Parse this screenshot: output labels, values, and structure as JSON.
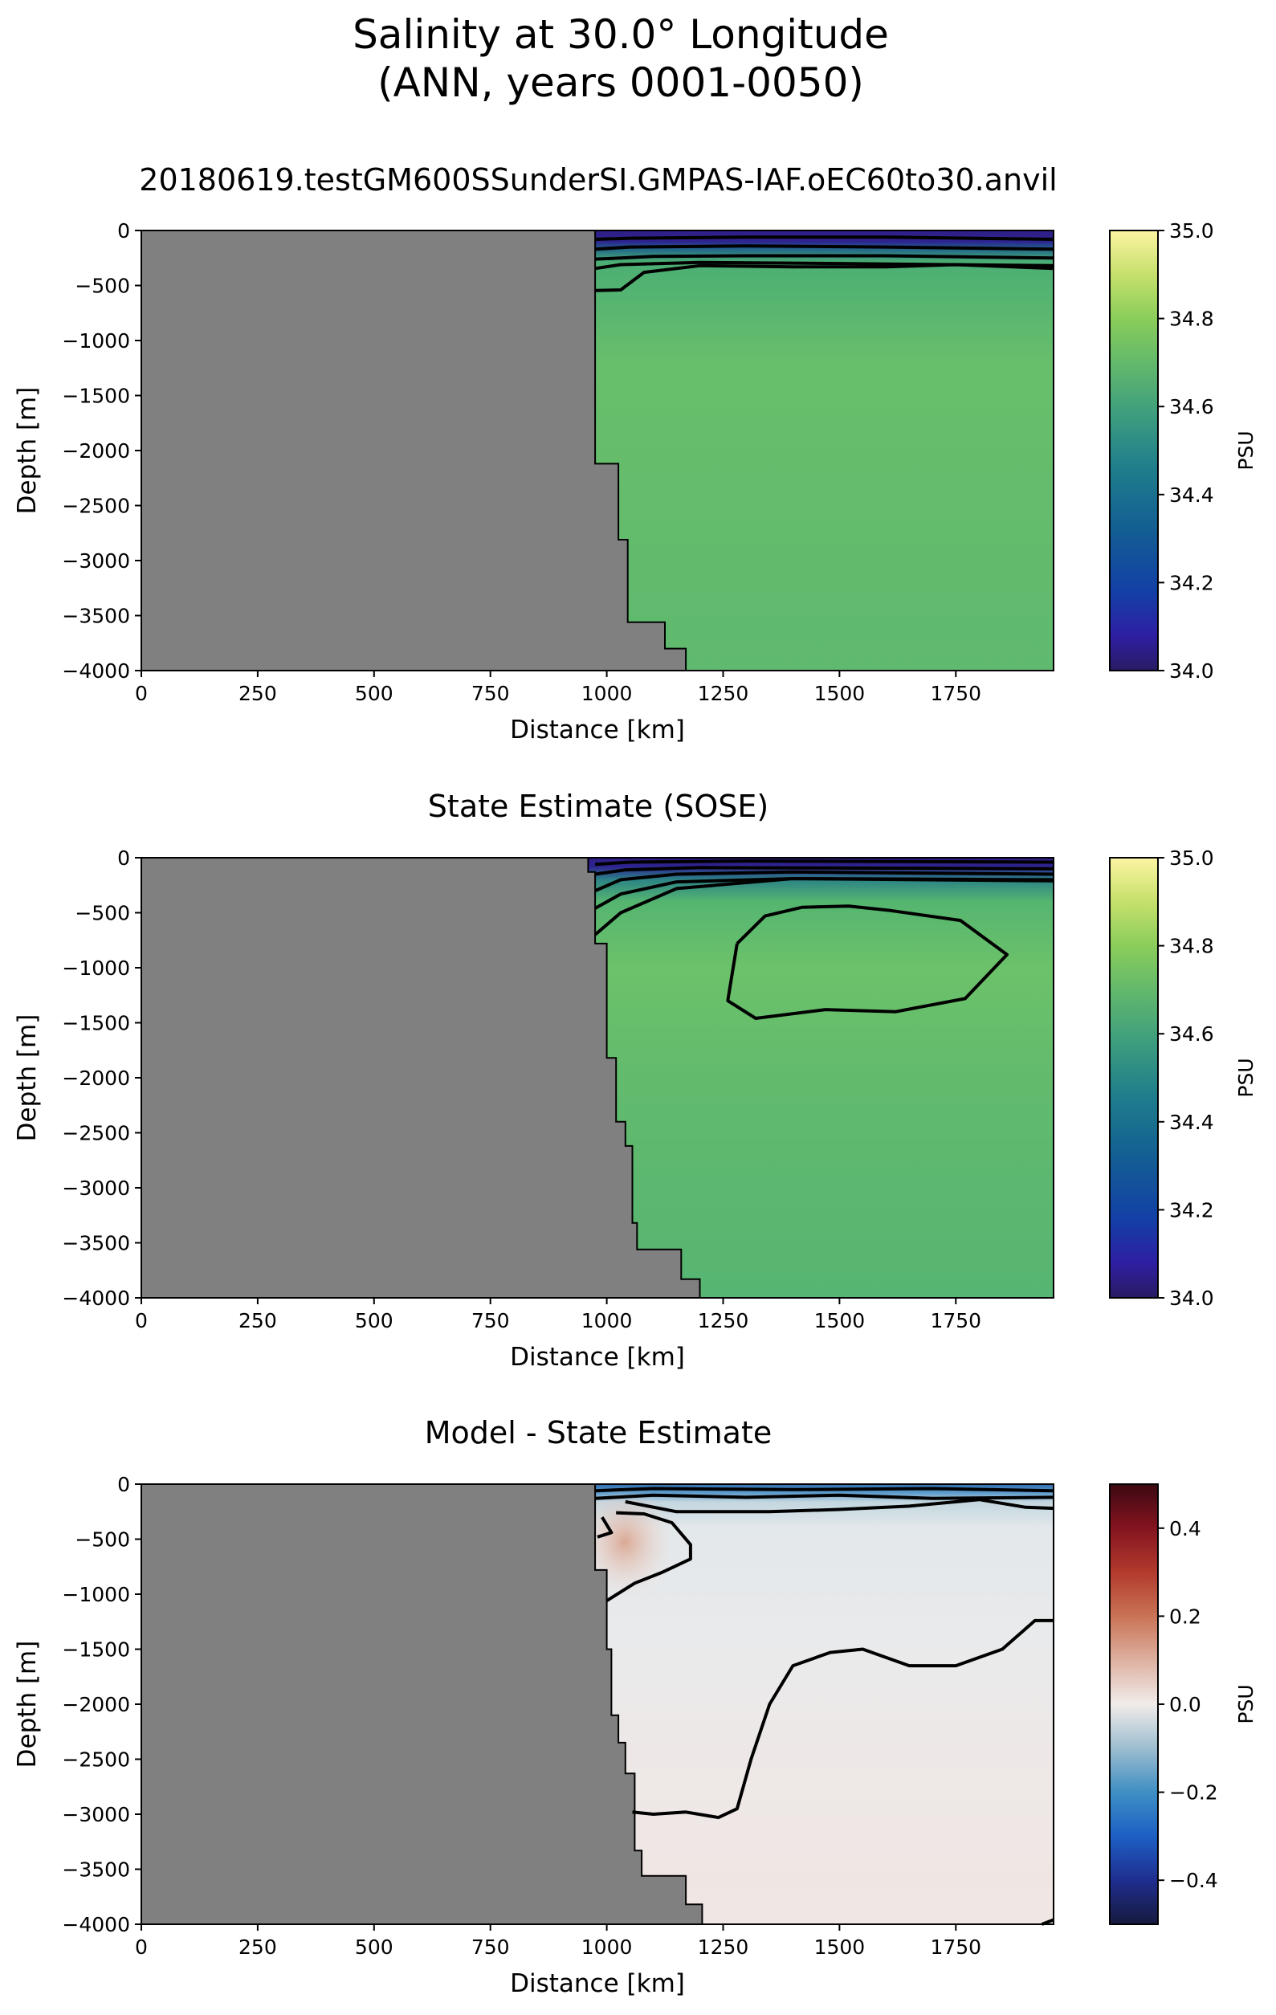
{
  "figure": {
    "title_line1": "Salinity at 30.0° Longitude",
    "title_line2": "(ANN, years 0001-0050)"
  },
  "colors": {
    "land": "#808080",
    "contour": "#000000"
  },
  "chart_data": [
    {
      "type": "heatmap",
      "title": "20180619.testGM600SSunderSI.GMPAS-IAF.oEC60to30.anvil",
      "xlabel": "Distance [km]",
      "ylabel": "Depth [m]",
      "xlim": [
        0,
        1960
      ],
      "ylim": [
        -4000,
        0
      ],
      "xticks": [
        0,
        250,
        500,
        750,
        1000,
        1250,
        1500,
        1750
      ],
      "yticks": [
        0,
        -500,
        -1000,
        -1500,
        -2000,
        -2500,
        -3000,
        -3500,
        -4000
      ],
      "colorbar": {
        "label": "PSU",
        "min": 34.0,
        "max": 35.0,
        "ticks": [
          34.0,
          34.2,
          34.4,
          34.6,
          34.8,
          35.0
        ],
        "colormap": "haline"
      },
      "field": {
        "surface_value": 34.1,
        "interior_value": 34.7,
        "deep_value": 34.68
      },
      "land_boundary": [
        [
          0,
          0
        ],
        [
          975,
          0
        ],
        [
          975,
          -2120
        ],
        [
          1025,
          -2120
        ],
        [
          1025,
          -2810
        ],
        [
          1045,
          -2810
        ],
        [
          1045,
          -3560
        ],
        [
          1125,
          -3560
        ],
        [
          1125,
          -3800
        ],
        [
          1170,
          -3800
        ],
        [
          1170,
          -4000
        ],
        [
          0,
          -4000
        ]
      ],
      "contours": [
        [
          [
            975,
            -80
          ],
          [
            1050,
            -70
          ],
          [
            1300,
            -60
          ],
          [
            1600,
            -60
          ],
          [
            1960,
            -80
          ]
        ],
        [
          [
            975,
            -170
          ],
          [
            1050,
            -150
          ],
          [
            1300,
            -140
          ],
          [
            1600,
            -150
          ],
          [
            1960,
            -170
          ]
        ],
        [
          [
            975,
            -260
          ],
          [
            1030,
            -250
          ],
          [
            1100,
            -235
          ],
          [
            1300,
            -230
          ],
          [
            1600,
            -230
          ],
          [
            1960,
            -250
          ]
        ],
        [
          [
            975,
            -345
          ],
          [
            1030,
            -310
          ],
          [
            1200,
            -290
          ],
          [
            1500,
            -300
          ],
          [
            1960,
            -320
          ]
        ],
        [
          [
            975,
            -545
          ],
          [
            1030,
            -540
          ],
          [
            1080,
            -380
          ],
          [
            1200,
            -320
          ],
          [
            1400,
            -330
          ],
          [
            1600,
            -330
          ],
          [
            1750,
            -310
          ],
          [
            1960,
            -345
          ]
        ]
      ]
    },
    {
      "type": "heatmap",
      "title": "State Estimate (SOSE)",
      "xlabel": "Distance [km]",
      "ylabel": "Depth [m]",
      "xlim": [
        0,
        1960
      ],
      "ylim": [
        -4000,
        0
      ],
      "xticks": [
        0,
        250,
        500,
        750,
        1000,
        1250,
        1500,
        1750
      ],
      "yticks": [
        0,
        -500,
        -1000,
        -1500,
        -2000,
        -2500,
        -3000,
        -3500,
        -4000
      ],
      "colorbar": {
        "label": "PSU",
        "min": 34.0,
        "max": 35.0,
        "ticks": [
          34.0,
          34.2,
          34.4,
          34.6,
          34.8,
          35.0
        ],
        "colormap": "haline"
      },
      "field": {
        "surface_value": 34.1,
        "interior_value": 34.72,
        "deep_value": 34.66
      },
      "land_boundary": [
        [
          0,
          0
        ],
        [
          960,
          0
        ],
        [
          960,
          -130
        ],
        [
          975,
          -130
        ],
        [
          975,
          -780
        ],
        [
          1000,
          -780
        ],
        [
          1000,
          -1820
        ],
        [
          1020,
          -1820
        ],
        [
          1020,
          -2400
        ],
        [
          1040,
          -2400
        ],
        [
          1040,
          -2620
        ],
        [
          1055,
          -2620
        ],
        [
          1055,
          -3320
        ],
        [
          1065,
          -3320
        ],
        [
          1065,
          -3560
        ],
        [
          1160,
          -3560
        ],
        [
          1160,
          -3830
        ],
        [
          1200,
          -3830
        ],
        [
          1200,
          -4000
        ],
        [
          0,
          -4000
        ]
      ],
      "contours": [
        [
          [
            975,
            -60
          ],
          [
            1050,
            -40
          ],
          [
            1300,
            -30
          ],
          [
            1960,
            -40
          ]
        ],
        [
          [
            975,
            -150
          ],
          [
            1040,
            -110
          ],
          [
            1200,
            -90
          ],
          [
            1960,
            -100
          ]
        ],
        [
          [
            975,
            -300
          ],
          [
            1030,
            -200
          ],
          [
            1150,
            -150
          ],
          [
            1400,
            -130
          ],
          [
            1960,
            -150
          ]
        ],
        [
          [
            975,
            -460
          ],
          [
            1030,
            -330
          ],
          [
            1150,
            -220
          ],
          [
            1400,
            -190
          ],
          [
            1960,
            -200
          ]
        ],
        [
          [
            975,
            -700
          ],
          [
            1030,
            -500
          ],
          [
            1150,
            -280
          ],
          [
            1400,
            -190
          ],
          [
            1960,
            -210
          ]
        ],
        [
          [
            1280,
            -780
          ],
          [
            1340,
            -530
          ],
          [
            1420,
            -450
          ],
          [
            1520,
            -440
          ],
          [
            1610,
            -480
          ],
          [
            1760,
            -570
          ],
          [
            1860,
            -880
          ],
          [
            1770,
            -1280
          ],
          [
            1620,
            -1400
          ],
          [
            1470,
            -1380
          ],
          [
            1320,
            -1460
          ],
          [
            1260,
            -1300
          ],
          [
            1280,
            -780
          ]
        ]
      ]
    },
    {
      "type": "heatmap",
      "title": "Model - State Estimate",
      "xlabel": "Distance [km]",
      "ylabel": "Depth [m]",
      "xlim": [
        0,
        1960
      ],
      "ylim": [
        -4000,
        0
      ],
      "xticks": [
        0,
        250,
        500,
        750,
        1000,
        1250,
        1500,
        1750
      ],
      "yticks": [
        0,
        -500,
        -1000,
        -1500,
        -2000,
        -2500,
        -3000,
        -3500,
        -4000
      ],
      "colorbar": {
        "label": "PSU",
        "min": -0.5,
        "max": 0.5,
        "ticks": [
          -0.4,
          -0.2,
          0.0,
          0.2,
          0.4
        ],
        "colormap": "balance"
      },
      "field": {
        "surface_value": -0.3,
        "interior_value": -0.02,
        "deep_value": 0.02
      },
      "land_boundary": [
        [
          0,
          0
        ],
        [
          975,
          0
        ],
        [
          975,
          -780
        ],
        [
          1000,
          -780
        ],
        [
          1000,
          -1500
        ],
        [
          1010,
          -1500
        ],
        [
          1010,
          -2100
        ],
        [
          1025,
          -2100
        ],
        [
          1025,
          -2350
        ],
        [
          1040,
          -2350
        ],
        [
          1040,
          -2630
        ],
        [
          1060,
          -2630
        ],
        [
          1060,
          -3330
        ],
        [
          1075,
          -3330
        ],
        [
          1075,
          -3560
        ],
        [
          1170,
          -3560
        ],
        [
          1170,
          -3820
        ],
        [
          1205,
          -3820
        ],
        [
          1205,
          -4000
        ],
        [
          0,
          -4000
        ]
      ],
      "contours": [
        [
          [
            975,
            -60
          ],
          [
            1100,
            -40
          ],
          [
            1400,
            -50
          ],
          [
            1700,
            -40
          ],
          [
            1960,
            -60
          ]
        ],
        [
          [
            975,
            -130
          ],
          [
            1100,
            -100
          ],
          [
            1300,
            -120
          ],
          [
            1500,
            -100
          ],
          [
            1700,
            -130
          ],
          [
            1960,
            -120
          ]
        ],
        [
          [
            1040,
            -160
          ],
          [
            1150,
            -250
          ],
          [
            1350,
            -250
          ],
          [
            1500,
            -230
          ],
          [
            1650,
            -200
          ],
          [
            1800,
            -140
          ],
          [
            1900,
            -210
          ],
          [
            1960,
            -220
          ]
        ],
        [
          [
            990,
            -300
          ],
          [
            1010,
            -440
          ],
          [
            980,
            -480
          ]
        ],
        [
          [
            1000,
            -1060
          ],
          [
            1060,
            -900
          ],
          [
            1120,
            -800
          ],
          [
            1180,
            -680
          ],
          [
            1180,
            -550
          ],
          [
            1140,
            -350
          ],
          [
            1080,
            -270
          ],
          [
            1020,
            -260
          ]
        ],
        [
          [
            1055,
            -2980
          ],
          [
            1100,
            -3000
          ],
          [
            1170,
            -2980
          ],
          [
            1240,
            -3030
          ],
          [
            1280,
            -2950
          ],
          [
            1310,
            -2500
          ],
          [
            1350,
            -2000
          ],
          [
            1400,
            -1650
          ],
          [
            1480,
            -1530
          ],
          [
            1550,
            -1500
          ],
          [
            1650,
            -1650
          ],
          [
            1750,
            -1650
          ],
          [
            1850,
            -1500
          ],
          [
            1920,
            -1240
          ],
          [
            1960,
            -1240
          ]
        ],
        [
          [
            1935,
            -4000
          ],
          [
            1960,
            -3960
          ]
        ]
      ]
    }
  ]
}
